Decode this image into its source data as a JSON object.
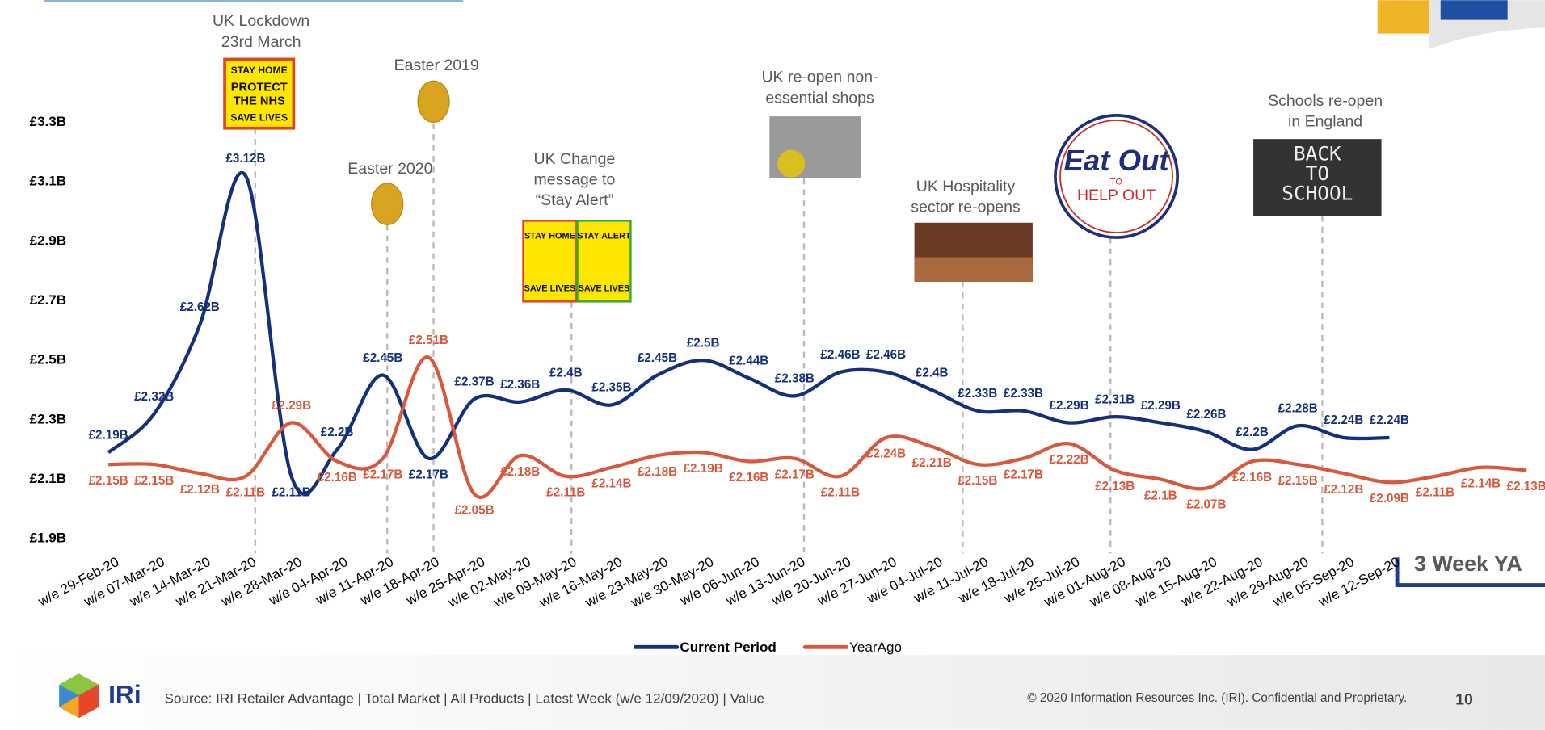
{
  "chart_data": {
    "type": "line",
    "categories": [
      "w/e 29-Feb-20",
      "w/e 07-Mar-20",
      "w/e 14-Mar-20",
      "w/e 21-Mar-20",
      "w/e 28-Mar-20",
      "w/e 04-Apr-20",
      "w/e 11-Apr-20",
      "w/e 18-Apr-20",
      "w/e 25-Apr-20",
      "w/e 02-May-20",
      "w/e 09-May-20",
      "w/e 16-May-20",
      "w/e 23-May-20",
      "w/e 30-May-20",
      "w/e 06-Jun-20",
      "w/e 13-Jun-20",
      "w/e 20-Jun-20",
      "w/e 27-Jun-20",
      "w/e 04-Jul-20",
      "w/e 11-Jul-20",
      "w/e 18-Jul-20",
      "w/e 25-Jul-20",
      "w/e 01-Aug-20",
      "w/e 08-Aug-20",
      "w/e 15-Aug-20",
      "w/e 22-Aug-20",
      "w/e 29-Aug-20",
      "w/e 05-Sep-20",
      "w/e 12-Sep-20",
      null,
      null,
      null
    ],
    "series": [
      {
        "name": "Current Period",
        "color": "#13307a",
        "values": [
          2.19,
          2.32,
          2.62,
          3.12,
          2.11,
          2.2,
          2.45,
          2.17,
          2.37,
          2.36,
          2.4,
          2.35,
          2.45,
          2.5,
          2.44,
          2.38,
          2.46,
          2.46,
          2.4,
          2.33,
          2.33,
          2.29,
          2.31,
          2.29,
          2.26,
          2.2,
          2.28,
          2.24,
          2.24,
          null,
          null,
          null
        ],
        "value_labels": [
          "£2.19B",
          "£2.32B",
          "£2.62B",
          "£3.12B",
          "£2.11B",
          "£2.2B",
          "£2.45B",
          "£2.17B",
          "£2.37B",
          "£2.36B",
          "£2.4B",
          "£2.35B",
          "£2.45B",
          "£2.5B",
          "£2.44B",
          "£2.38B",
          "£2.46B",
          "£2.46B",
          "£2.4B",
          "£2.33B",
          "£2.33B",
          "£2.29B",
          "£2.31B",
          "£2.29B",
          "£2.26B",
          "£2.2B",
          "£2.28B",
          "£2.24B",
          "£2.24B",
          null,
          null,
          null
        ]
      },
      {
        "name": "YearAgo",
        "color": "#d9573a",
        "values": [
          2.15,
          2.15,
          2.12,
          2.11,
          2.29,
          2.16,
          2.17,
          2.51,
          2.05,
          2.18,
          2.11,
          2.14,
          2.18,
          2.19,
          2.16,
          2.17,
          2.11,
          2.24,
          2.21,
          2.15,
          2.17,
          2.22,
          2.13,
          2.1,
          2.07,
          2.16,
          2.15,
          2.12,
          2.09,
          2.11,
          2.14,
          2.13
        ],
        "value_labels": [
          "£2.15B",
          "£2.15B",
          "£2.12B",
          "£2.11B",
          "£2.29B",
          "£2.16B",
          "£2.17B",
          "£2.51B",
          "£2.05B",
          "£2.18B",
          "£2.11B",
          "£2.14B",
          "£2.18B",
          "£2.19B",
          "£2.16B",
          "£2.17B",
          "£2.11B",
          "£2.24B",
          "£2.21B",
          "£2.15B",
          "£2.17B",
          "£2.22B",
          "£2.13B",
          "£2.1B",
          "£2.07B",
          "£2.16B",
          "£2.15B",
          "£2.12B",
          "£2.09B",
          "£2.11B",
          "£2.14B",
          "£2.13B"
        ]
      }
    ],
    "ylim": [
      1.9,
      3.3
    ],
    "yticks": [
      {
        "value": 1.9,
        "label": "£1.9B"
      },
      {
        "value": 2.1,
        "label": "£2.1B"
      },
      {
        "value": 2.3,
        "label": "£2.3B"
      },
      {
        "value": 2.5,
        "label": "£2.5B"
      },
      {
        "value": 2.7,
        "label": "£2.7B"
      },
      {
        "value": 2.9,
        "label": "£2.9B"
      },
      {
        "value": 3.1,
        "label": "£3.1B"
      },
      {
        "value": 3.3,
        "label": "£3.3B"
      }
    ],
    "grid": false,
    "legend": "bottom",
    "annotations": [
      {
        "text": [
          "UK Lockdown",
          "23rd March"
        ],
        "image_text": [
          "STAY HOME",
          "PROTECT",
          "THE NHS",
          "SAVE LIVES"
        ]
      },
      {
        "text": [
          "Easter 2019"
        ]
      },
      {
        "text": [
          "Easter 2020"
        ]
      },
      {
        "text": [
          "UK Change",
          "message to",
          "“Stay Alert”"
        ],
        "image_text": [
          "STAY HOME",
          "SAVE LIVES",
          "STAY ALERT",
          "SAVE LIVES"
        ]
      },
      {
        "text": [
          "UK re-open non-",
          "essential shops"
        ]
      },
      {
        "text": [
          "UK Hospitality",
          "sector re-opens"
        ]
      },
      {
        "image_text": [
          "Eat Out",
          "TO",
          "HELP OUT"
        ]
      },
      {
        "text": [
          "Schools re-open",
          "in England"
        ],
        "image_text": [
          "BACK",
          "TO",
          "SCHOOL"
        ]
      }
    ],
    "badge": "3 Week YA"
  },
  "footer": {
    "logo": "IRi",
    "source": "Source: IRI Retailer Advantage | Total Market | All Products | Latest Week (w/e 12/09/2020) | Value",
    "copyright": "© 2020 Information Resources Inc. (IRI). Confidential and Proprietary.",
    "page": "10"
  }
}
